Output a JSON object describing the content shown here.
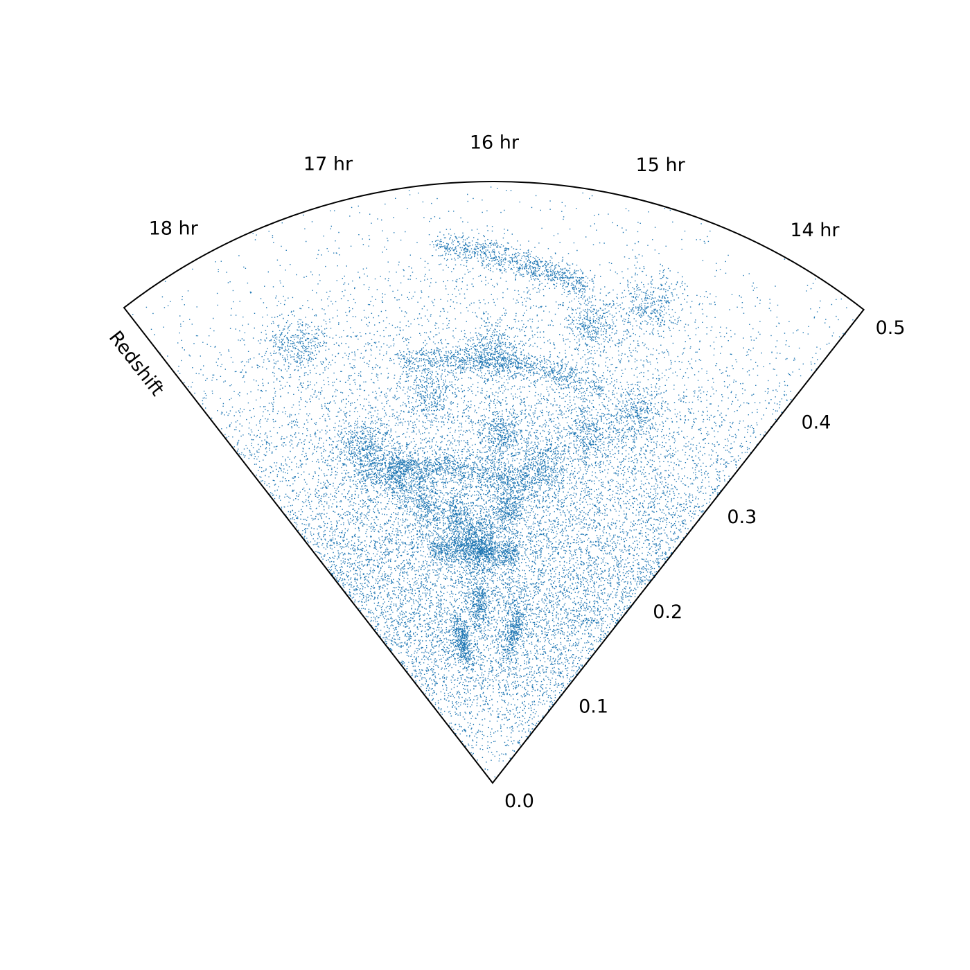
{
  "chart_data": {
    "type": "scatter",
    "projection": "polar-wedge",
    "title": "",
    "xlabel": "",
    "ylabel": "Redshift",
    "angular_axis": {
      "quantity": "right ascension",
      "unit": "hr",
      "range_hr": [
        13.5,
        18.5
      ],
      "ticks": [
        {
          "value": 14,
          "label": "14 hr"
        },
        {
          "value": 15,
          "label": "15 hr"
        },
        {
          "value": 16,
          "label": "16 hr"
        },
        {
          "value": 17,
          "label": "17 hr"
        },
        {
          "value": 18,
          "label": "18 hr"
        }
      ]
    },
    "radial_axis": {
      "quantity": "redshift",
      "range": [
        0.0,
        0.5
      ],
      "ticks": [
        {
          "value": 0.0,
          "label": "0.0"
        },
        {
          "value": 0.1,
          "label": "0.1"
        },
        {
          "value": 0.2,
          "label": "0.2"
        },
        {
          "value": 0.3,
          "label": "0.3"
        },
        {
          "value": 0.4,
          "label": "0.4"
        },
        {
          "value": 0.5,
          "label": "0.5"
        }
      ]
    },
    "grid": false,
    "legend": "none",
    "point_color": "#1f77b4",
    "point_density": {
      "description": "tens of thousands of galaxies; density peaks near redshift 0.2-0.3, sparser toward 0.5 and near 0",
      "approx_count": 24000
    },
    "clusters": [
      {
        "ra_hr": 17.4,
        "z": 0.3
      },
      {
        "ra_hr": 17.1,
        "z": 0.27
      },
      {
        "ra_hr": 16.9,
        "z": 0.24
      },
      {
        "ra_hr": 16.5,
        "z": 0.22
      },
      {
        "ra_hr": 16.2,
        "z": 0.2
      },
      {
        "ra_hr": 15.8,
        "z": 0.23
      },
      {
        "ra_hr": 15.4,
        "z": 0.27
      },
      {
        "ra_hr": 15.0,
        "z": 0.3
      },
      {
        "ra_hr": 14.6,
        "z": 0.33
      },
      {
        "ra_hr": 16.0,
        "z": 0.36
      },
      {
        "ra_hr": 15.9,
        "z": 0.29
      },
      {
        "ra_hr": 15.2,
        "z": 0.39
      },
      {
        "ra_hr": 16.6,
        "z": 0.33
      },
      {
        "ra_hr": 17.6,
        "z": 0.4
      },
      {
        "ra_hr": 14.8,
        "z": 0.42
      },
      {
        "ra_hr": 16.3,
        "z": 0.15
      },
      {
        "ra_hr": 15.5,
        "z": 0.13
      },
      {
        "ra_hr": 16.8,
        "z": 0.12
      }
    ],
    "filaments": [
      {
        "from": {
          "ra_hr": 17.6,
          "z": 0.28
        },
        "to": {
          "ra_hr": 15.5,
          "z": 0.25
        }
      },
      {
        "from": {
          "ra_hr": 16.8,
          "z": 0.36
        },
        "to": {
          "ra_hr": 15.0,
          "z": 0.34
        }
      },
      {
        "from": {
          "ra_hr": 17.0,
          "z": 0.2
        },
        "to": {
          "ra_hr": 15.6,
          "z": 0.19
        }
      },
      {
        "from": {
          "ra_hr": 16.4,
          "z": 0.45
        },
        "to": {
          "ra_hr": 15.3,
          "z": 0.42
        }
      }
    ]
  }
}
